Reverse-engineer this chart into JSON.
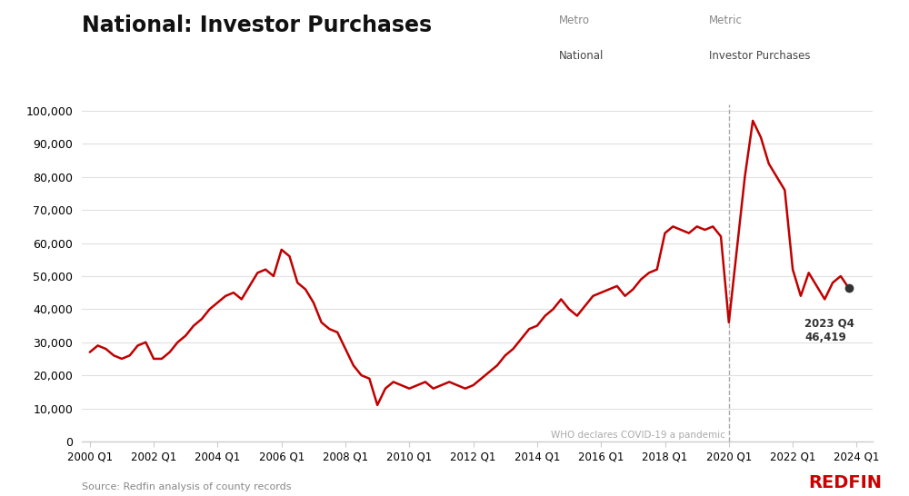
{
  "title": "National: Investor Purchases",
  "subtitle_metro_label": "Metro",
  "subtitle_metro_value": "National",
  "subtitle_metric_label": "Metric",
  "subtitle_metric_value": "Investor Purchases",
  "source": "Source: Redfin analysis of county records",
  "redfin_label": "REDFIN",
  "line_color": "#c00000",
  "background_color": "#ffffff",
  "annotation_label": "2023 Q4",
  "annotation_value": "46,419",
  "covid_label": "WHO declares COVID-19 a pandemic",
  "covid_x_index": 80,
  "yticks": [
    0,
    10000,
    20000,
    30000,
    40000,
    50000,
    60000,
    70000,
    80000,
    90000,
    100000
  ],
  "xtick_labels": [
    "2000 Q1",
    "2002 Q1",
    "2004 Q1",
    "2006 Q1",
    "2008 Q1",
    "2010 Q1",
    "2012 Q1",
    "2014 Q1",
    "2016 Q1",
    "2018 Q1",
    "2020 Q1",
    "2022 Q1",
    "2024 Q1"
  ],
  "xtick_positions": [
    0,
    8,
    16,
    24,
    32,
    40,
    48,
    56,
    64,
    72,
    80,
    88,
    96
  ],
  "values": [
    27000,
    29000,
    28000,
    26000,
    25000,
    26000,
    29000,
    30000,
    25000,
    25000,
    27000,
    30000,
    32000,
    35000,
    37000,
    40000,
    42000,
    44000,
    45000,
    43000,
    47000,
    51000,
    52000,
    50000,
    58000,
    56000,
    48000,
    46000,
    42000,
    36000,
    34000,
    33000,
    28000,
    23000,
    20000,
    19000,
    11000,
    16000,
    18000,
    17000,
    16000,
    17000,
    18000,
    16000,
    17000,
    18000,
    17000,
    16000,
    17000,
    19000,
    21000,
    23000,
    26000,
    28000,
    31000,
    34000,
    35000,
    38000,
    40000,
    43000,
    40000,
    38000,
    41000,
    44000,
    45000,
    46000,
    47000,
    44000,
    46000,
    49000,
    51000,
    52000,
    63000,
    65000,
    64000,
    63000,
    65000,
    64000,
    65000,
    62000,
    36000,
    58000,
    80000,
    97000,
    92000,
    84000,
    80000,
    76000,
    52000,
    44000,
    51000,
    47000,
    43000,
    48000,
    50000,
    46419
  ]
}
